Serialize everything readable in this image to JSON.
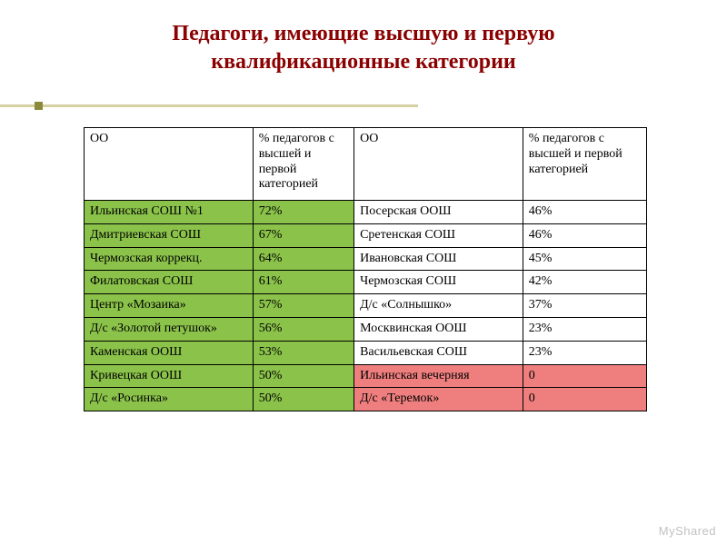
{
  "title": "Педагоги, имеющие высшую и первую квалификационные категории",
  "colors": {
    "title": "#8B0000",
    "accent_line": "#d6d1a3",
    "accent_square": "#8a8a3a",
    "green": "#8bc34a",
    "pink": "#ef7f7f",
    "white": "#ffffff",
    "border": "#000000"
  },
  "table": {
    "headers": {
      "c1": "ОО",
      "c2": "% педагогов с высшей и первой категорией",
      "c3": "ОО",
      "c4": "% педагогов с высшей и первой категорией"
    },
    "rows": [
      {
        "a_name": "Ильинская СОШ №1",
        "a_pct": "72%",
        "a_color": "green",
        "b_name": "Посерская ООШ",
        "b_pct": "46%",
        "b_color": "white"
      },
      {
        "a_name": "Дмитриевская СОШ",
        "a_pct": "67%",
        "a_color": "green",
        "b_name": "Сретенская СОШ",
        "b_pct": "46%",
        "b_color": "white"
      },
      {
        "a_name": "Чермозская коррекц.",
        "a_pct": "64%",
        "a_color": "green",
        "b_name": "Ивановская СОШ",
        "b_pct": "45%",
        "b_color": "white"
      },
      {
        "a_name": "Филатовская СОШ",
        "a_pct": "61%",
        "a_color": "green",
        "b_name": "Чермозская СОШ",
        "b_pct": "42%",
        "b_color": "white"
      },
      {
        "a_name": "Центр «Мозаика»",
        "a_pct": "57%",
        "a_color": "green",
        "b_name": "Д/с «Солнышко»",
        "b_pct": "37%",
        "b_color": "white"
      },
      {
        "a_name": "Д/с «Золотой петушок»",
        "a_pct": "56%",
        "a_color": "green",
        "b_name": "Москвинская ООШ",
        "b_pct": "23%",
        "b_color": "white"
      },
      {
        "a_name": "Каменская ООШ",
        "a_pct": "53%",
        "a_color": "green",
        "b_name": "Васильевская СОШ",
        "b_pct": "23%",
        "b_color": "white"
      },
      {
        "a_name": "Кривецкая ООШ",
        "a_pct": "50%",
        "a_color": "green",
        "b_name": "Ильинская вечерняя",
        "b_pct": "0",
        "b_color": "pink"
      },
      {
        "a_name": "Д/с «Росинка»",
        "a_pct": "50%",
        "a_color": "green",
        "b_name": "Д/с «Теремок»",
        "b_pct": "0",
        "b_color": "pink"
      }
    ]
  },
  "watermark": "MyShared"
}
